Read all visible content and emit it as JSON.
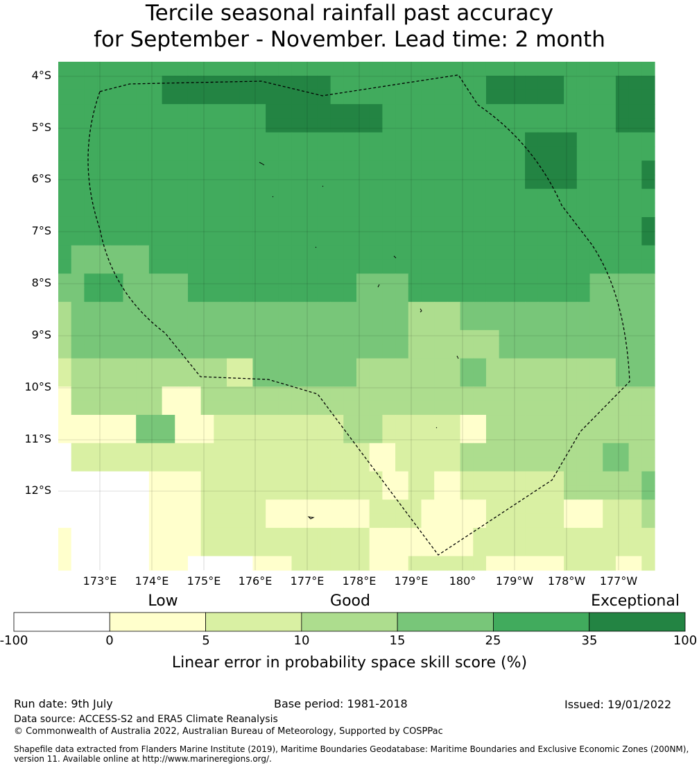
{
  "title_line1": "Tercile seasonal rainfall past accuracy",
  "title_line2": "for September - November. Lead time: 2 month",
  "map": {
    "lat_labels": [
      "4°S",
      "5°S",
      "6°S",
      "7°S",
      "8°S",
      "9°S",
      "10°S",
      "11°S",
      "12°S"
    ],
    "lon_labels": [
      "173°E",
      "174°E",
      "175°E",
      "176°E",
      "177°E",
      "178°E",
      "179°E",
      "180°",
      "179°W",
      "178°W",
      "177°W"
    ],
    "grid_colors": [
      "#ffffff",
      "#ffffcc",
      "#d9f0a3",
      "#addd8e",
      "#78c679",
      "#41ab5d",
      "#238443"
    ],
    "grid": [
      "5555555555555555555555555555555555555555555555",
      "5555555566666666666665555555555556666665555666",
      "5555555566666666666665555555555556666665555666",
      "5555555555555555666666666555555555555555555666",
      "5555555555555555666666666555555555555555555666",
      "5555555555555555555555555555555555556666555555",
      "5555555555555555555555555555555555556666555555",
      "5555555555555555555555555555555555556666555556",
      "5555555555555555555555555555555555556666555556",
      "5555555555555555555555555555555555555555555555",
      "5555555555555555555555555555555555555555555555",
      "5555555555555555555555555555555555555555555556",
      "5555555555555555555555555555555555555555555556",
      "5444444555555555555555555555555555555555555555",
      "5444444555555555555555555555555555555555555555",
      "4455544444555555555555544445555555555555544444",
      "4455544444555555555555544445555555555555544444",
      "3444444444444444444444444443333444444444444444",
      "3444444444444444444444444443333444444444444444",
      "3444444444444444444444444443333333444444444444",
      "3444444444444444444444444443333333444444444444",
      "2333333333333224444444433333333443333333333444",
      "2333333333333224444444433333333443333333333444",
      "1333333311133333333333333333333333333333333333",
      "1333333311133333333333333333333333333333333333",
      "1111114441112222222222333222222113333333333333",
      "1111114441112222222222333222222113333333333333",
      "0222222222222222222222221122222333333333334433",
      "0222222222222222222222221122222333333333334433",
      "0000000111122222222222222112211222222223333334",
      "0000000111122222222222222112211222222223333334",
      "0000000111122222111111112222111112222221112223",
      "0000000111122222111111112222111112222221112223",
      "1000000111122222222222221111111122222222222222",
      "1000000111122222222222221111111122222222222222",
      "1000000111000001112222221112222221111112222112"
    ]
  },
  "legend": {
    "category_labels": [
      "Low",
      "Good",
      "Exceptional"
    ],
    "colors": [
      "#ffffff",
      "#ffffcc",
      "#d9f0a3",
      "#addd8e",
      "#78c679",
      "#41ab5d",
      "#238443"
    ],
    "tick_labels": [
      "-100",
      "0",
      "5",
      "10",
      "15",
      "25",
      "35",
      "100"
    ],
    "axis_label": "Linear error in probability space skill score (%)"
  },
  "footer": {
    "run_date": "Run date: 9th July",
    "base_period": "Base period: 1981-2018",
    "issued": "Issued: 19/01/2022",
    "data_source": "Data source: ACCESS-S2 and ERA5 Climate Reanalysis",
    "copyright": "© Commonwealth of Australia 2022, Australian Bureau of Meteorology, Supported by COSPPac",
    "shapefile_line1": "Shapefile data extracted from Flanders Marine Institute (2019), Maritime Boundaries Geodatabase: Maritime Boundaries and Exclusive Economic Zones (200NM),",
    "shapefile_line2": "version 11. Available online at http://www.marineregions.org/."
  }
}
